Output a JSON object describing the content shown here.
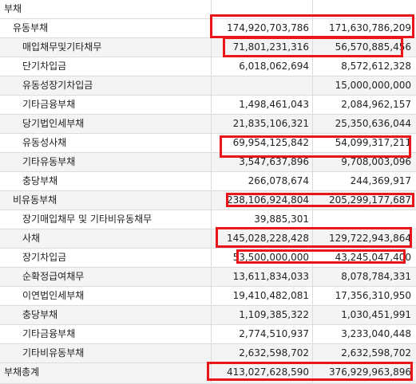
{
  "table": {
    "header_label": "부채",
    "rows": [
      {
        "label": "유동부채",
        "v1": "174,920,703,786",
        "v2": "171,630,786,209"
      },
      {
        "label": "매입채무및기타채무",
        "v1": "71,801,231,316",
        "v2": "56,570,885,456"
      },
      {
        "label": "단기차입금",
        "v1": "6,018,062,694",
        "v2": "8,572,612,328"
      },
      {
        "label": "유동성장기차입금",
        "v1": "",
        "v2": "15,000,000,000"
      },
      {
        "label": "기타금융부채",
        "v1": "1,498,461,043",
        "v2": "2,084,962,157"
      },
      {
        "label": "당기법인세부채",
        "v1": "21,835,106,321",
        "v2": "25,350,636,044"
      },
      {
        "label": "유동성사채",
        "v1": "69,954,125,842",
        "v2": "54,099,317,211"
      },
      {
        "label": "기타유동부채",
        "v1": "3,547,637,896",
        "v2": "9,708,003,096"
      },
      {
        "label": "충당부채",
        "v1": "266,078,674",
        "v2": "244,369,917"
      },
      {
        "label": "비유동부채",
        "v1": "238,106,924,804",
        "v2": "205,299,177,687"
      },
      {
        "label": "장기매입채무 및 기타비유동채무",
        "v1": "39,885,301",
        "v2": ""
      },
      {
        "label": "사채",
        "v1": "145,028,228,428",
        "v2": "129,722,943,864"
      },
      {
        "label": "장기차입금",
        "v1": "53,500,000,000",
        "v2": "43,245,047,400"
      },
      {
        "label": "순확정급여채무",
        "v1": "13,611,834,033",
        "v2": "8,078,784,331"
      },
      {
        "label": "이연법인세부채",
        "v1": "19,410,482,081",
        "v2": "17,356,310,950"
      },
      {
        "label": "충당부채",
        "v1": "1,109,385,322",
        "v2": "1,030,451,991"
      },
      {
        "label": "기타금융부채",
        "v1": "2,774,510,937",
        "v2": "3,233,040,448"
      },
      {
        "label": "기타비유동부채",
        "v1": "2,632,598,702",
        "v2": "2,632,598,702"
      },
      {
        "label": "부채총계",
        "v1": "413,027,628,590",
        "v2": "376,929,963,896"
      }
    ]
  },
  "highlight_color": "#e8161b"
}
